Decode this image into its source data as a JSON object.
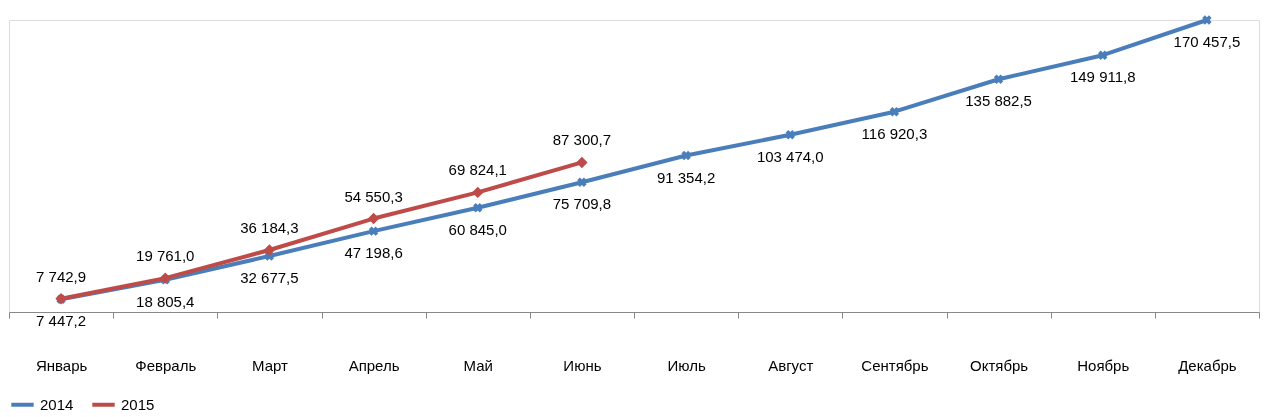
{
  "chart_data": {
    "type": "line",
    "categories": [
      "Январь",
      "Февраль",
      "Март",
      "Апрель",
      "Май",
      "Июнь",
      "Июль",
      "Август",
      "Сентябрь",
      "Октябрь",
      "Ноябрь",
      "Декабрь"
    ],
    "series": [
      {
        "name": "2014",
        "color": "#4a7ebb",
        "marker": "cross",
        "values": [
          7447.2,
          18805.4,
          32677.5,
          47198.6,
          60845.0,
          75709.8,
          91354.2,
          103474.0,
          116920.3,
          135882.5,
          149911.8,
          170457.5
        ],
        "value_labels": [
          "7 447,2",
          "18 805,4",
          "32 677,5",
          "47 198,6",
          "60 845,0",
          "75 709,8",
          "91 354,2",
          "103 474,0",
          "116 920,3",
          "135 882,5",
          "149 911,8",
          "170 457,5"
        ]
      },
      {
        "name": "2015",
        "color": "#be4b48",
        "marker": "diamond",
        "values": [
          7742.9,
          19761.0,
          36184.3,
          54550.3,
          69824.1,
          87300.7,
          null,
          null,
          null,
          null,
          null,
          null
        ],
        "value_labels": [
          "7 742,9",
          "19 761,0",
          "36 184,3",
          "54 550,3",
          "69 824,1",
          "87 300,7",
          null,
          null,
          null,
          null,
          null,
          null
        ]
      }
    ],
    "grid": false,
    "legend": "bottom",
    "line_style": "solid"
  }
}
